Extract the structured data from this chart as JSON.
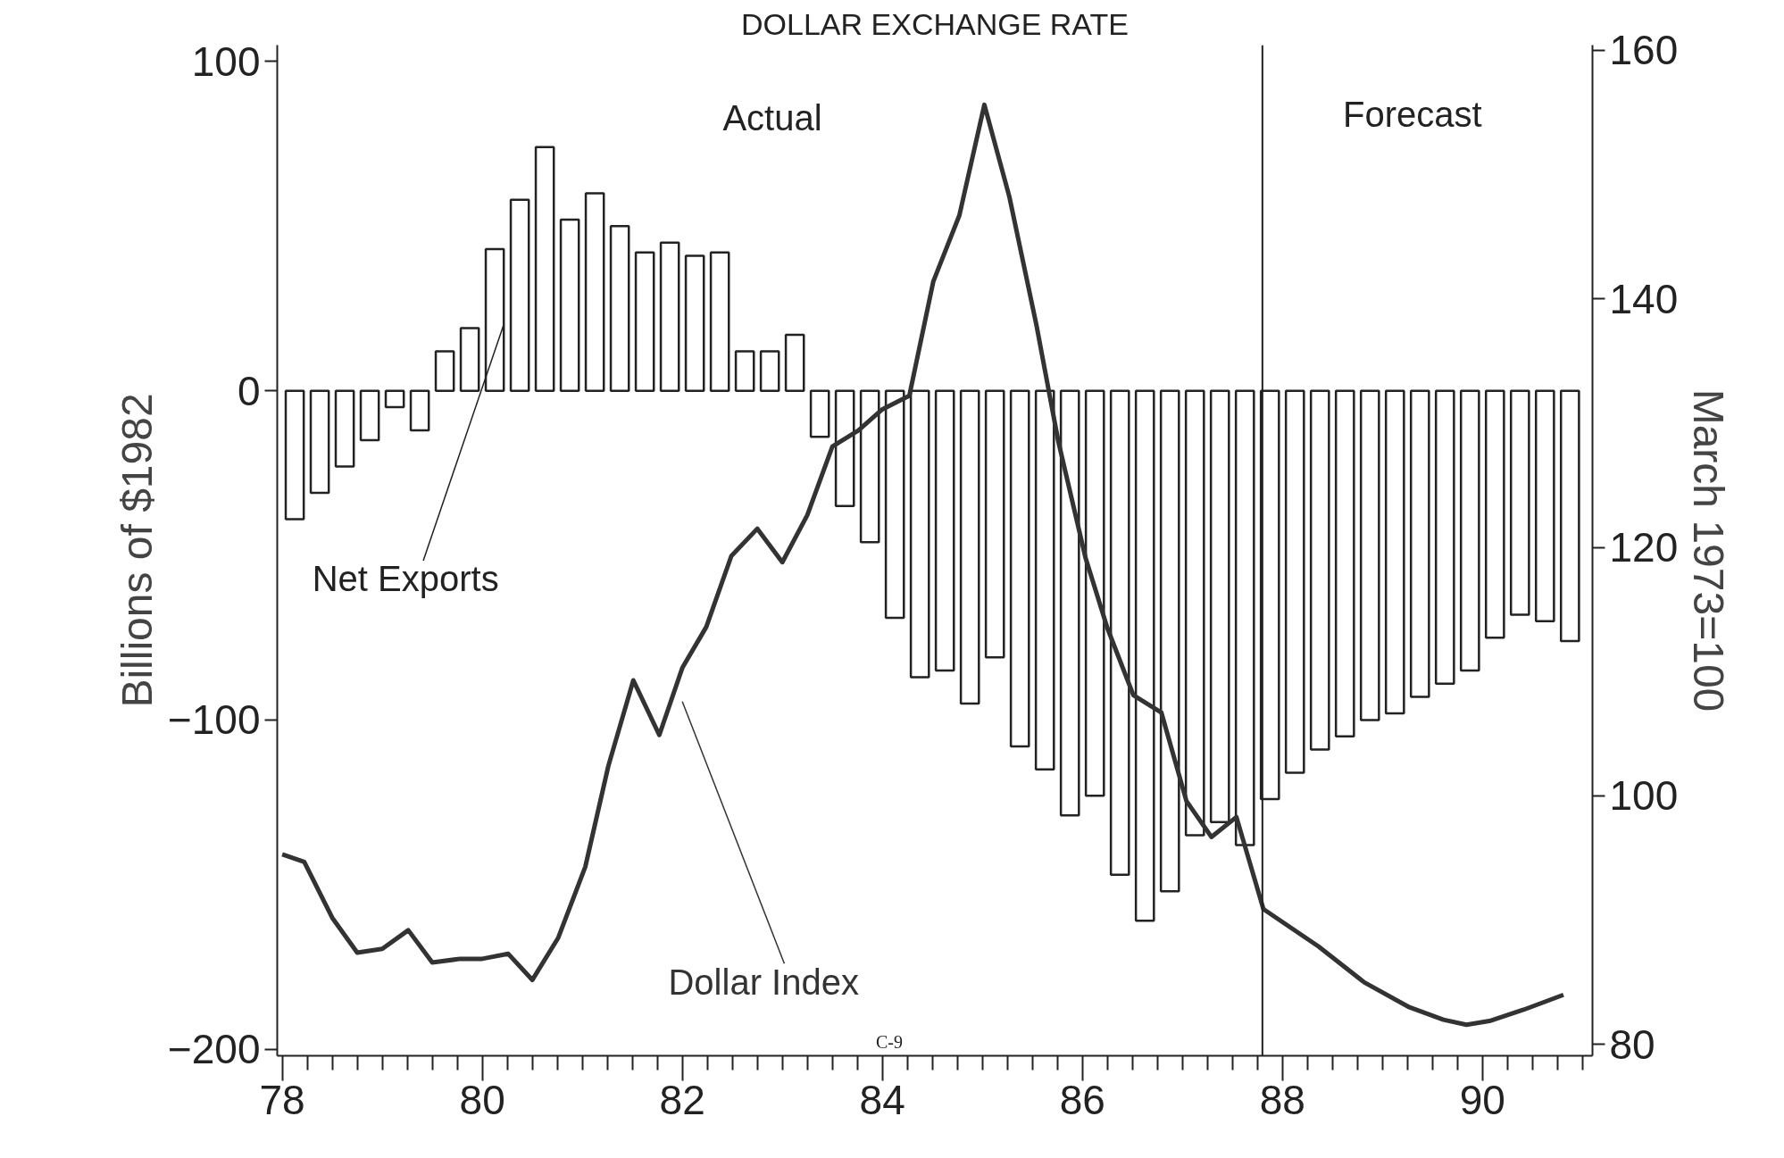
{
  "chart_data": {
    "type": "bar",
    "title": "DOLLAR EXCHANGE RATE",
    "ylabel": "Billions of $1982",
    "y2label": "March 1973=100",
    "x": [
      78.125,
      78.375,
      78.625,
      78.875,
      79.125,
      79.375,
      79.625,
      79.875,
      80.125,
      80.375,
      80.625,
      80.875,
      81.125,
      81.375,
      81.625,
      81.875,
      82.125,
      82.375,
      82.625,
      82.875,
      83.125,
      83.375,
      83.625,
      83.875,
      84.125,
      84.375,
      84.625,
      84.875,
      85.125,
      85.375,
      85.625,
      85.875,
      86.125,
      86.375,
      86.625,
      86.875,
      87.125,
      87.375,
      87.625,
      87.875,
      88.125,
      88.375,
      88.625,
      88.875,
      89.125,
      89.375,
      89.625,
      89.875,
      90.125,
      90.375,
      90.625,
      90.875
    ],
    "series": [
      {
        "name": "Net Exports",
        "color": "#222222",
        "values": [
          -39,
          -31,
          -23,
          -15,
          -5,
          -12,
          12,
          19,
          43,
          58,
          74,
          52,
          60,
          50,
          42,
          45,
          41,
          42,
          12,
          12,
          17,
          -14,
          -35,
          -46,
          -69,
          -87,
          -85,
          -95,
          -81,
          -108,
          -115,
          -129,
          -123,
          -147,
          -161,
          -152,
          -135,
          -131,
          -138,
          -124,
          -116,
          -109,
          -105,
          -100,
          -98,
          -93,
          -89,
          -85,
          -75,
          -68,
          -70,
          -76
        ]
      },
      {
        "name": "Dollar Index",
        "type": "line",
        "axis": "y2",
        "color": "#333333",
        "x": [
          78.0,
          78.22,
          78.5,
          78.75,
          79.0,
          79.26,
          79.5,
          79.78,
          80.0,
          80.26,
          80.5,
          80.76,
          81.03,
          81.26,
          81.51,
          81.77,
          82.0,
          82.24,
          82.49,
          82.75,
          83.0,
          83.25,
          83.5,
          83.76,
          84.0,
          84.27,
          84.51,
          84.77,
          85.02,
          85.27,
          85.54,
          85.76,
          86.03,
          86.25,
          86.51,
          86.79,
          87.04,
          87.29,
          87.54,
          87.81,
          88.36,
          88.82,
          89.27,
          89.61,
          89.84,
          90.07,
          90.41,
          90.81
        ],
        "values": [
          95.3,
          94.7,
          90.2,
          87.4,
          87.7,
          89.2,
          86.6,
          86.9,
          86.9,
          87.3,
          85.2,
          88.6,
          94.3,
          102.4,
          109.3,
          104.9,
          110.3,
          113.6,
          119.3,
          121.5,
          118.8,
          122.6,
          128.1,
          129.4,
          131.1,
          132.2,
          141.4,
          146.7,
          155.6,
          148.2,
          137.9,
          128.5,
          119.2,
          113.5,
          108.1,
          106.7,
          99.6,
          96.7,
          98.3,
          90.9,
          87.9,
          85.0,
          83.0,
          82.0,
          81.6,
          81.9,
          82.8,
          84.0
        ]
      }
    ],
    "xlim": [
      77.95,
      91.1
    ],
    "xticks": [
      {
        "value": 78,
        "label": "78"
      },
      {
        "value": 78.25,
        "label": null
      },
      {
        "value": 78.5,
        "label": null
      },
      {
        "value": 78.75,
        "label": null
      },
      {
        "value": 79,
        "label": null
      },
      {
        "value": 79.25,
        "label": null
      },
      {
        "value": 79.5,
        "label": null
      },
      {
        "value": 79.75,
        "label": null
      },
      {
        "value": 80,
        "label": "80"
      },
      {
        "value": 80.25,
        "label": null
      },
      {
        "value": 80.5,
        "label": null
      },
      {
        "value": 80.75,
        "label": null
      },
      {
        "value": 81,
        "label": null
      },
      {
        "value": 81.25,
        "label": null
      },
      {
        "value": 81.5,
        "label": null
      },
      {
        "value": 81.75,
        "label": null
      },
      {
        "value": 82,
        "label": "82"
      },
      {
        "value": 82.25,
        "label": null
      },
      {
        "value": 82.5,
        "label": null
      },
      {
        "value": 82.75,
        "label": null
      },
      {
        "value": 83,
        "label": null
      },
      {
        "value": 83.25,
        "label": null
      },
      {
        "value": 83.5,
        "label": null
      },
      {
        "value": 83.75,
        "label": null
      },
      {
        "value": 84,
        "label": "84"
      },
      {
        "value": 84.25,
        "label": null
      },
      {
        "value": 84.5,
        "label": null
      },
      {
        "value": 84.75,
        "label": null
      },
      {
        "value": 85,
        "label": null
      },
      {
        "value": 85.25,
        "label": null
      },
      {
        "value": 85.5,
        "label": null
      },
      {
        "value": 85.75,
        "label": null
      },
      {
        "value": 86,
        "label": "86"
      },
      {
        "value": 86.25,
        "label": null
      },
      {
        "value": 86.5,
        "label": null
      },
      {
        "value": 86.75,
        "label": null
      },
      {
        "value": 87,
        "label": null
      },
      {
        "value": 87.25,
        "label": null
      },
      {
        "value": 87.5,
        "label": null
      },
      {
        "value": 87.75,
        "label": null
      },
      {
        "value": 88,
        "label": "88"
      },
      {
        "value": 88.25,
        "label": null
      },
      {
        "value": 88.5,
        "label": null
      },
      {
        "value": 88.75,
        "label": null
      },
      {
        "value": 89,
        "label": null
      },
      {
        "value": 89.25,
        "label": null
      },
      {
        "value": 89.5,
        "label": null
      },
      {
        "value": 89.75,
        "label": null
      },
      {
        "value": 90,
        "label": "90"
      },
      {
        "value": 90.25,
        "label": null
      },
      {
        "value": 90.5,
        "label": null
      },
      {
        "value": 90.75,
        "label": null
      },
      {
        "value": 91,
        "label": null
      }
    ],
    "ylim": [
      -202,
      105
    ],
    "yticks": [
      -200,
      -100,
      0,
      100
    ],
    "y2lim": [
      79.1,
      160.4
    ],
    "y2ticks": [
      80,
      100,
      120,
      140,
      160
    ],
    "ref_lines": [
      {
        "axis": "x",
        "value": 87.8,
        "label": null,
        "color": "#222222"
      }
    ],
    "annotations": [
      "Actual",
      "Forecast",
      "C-9"
    ],
    "grid": false,
    "legend": false
  }
}
